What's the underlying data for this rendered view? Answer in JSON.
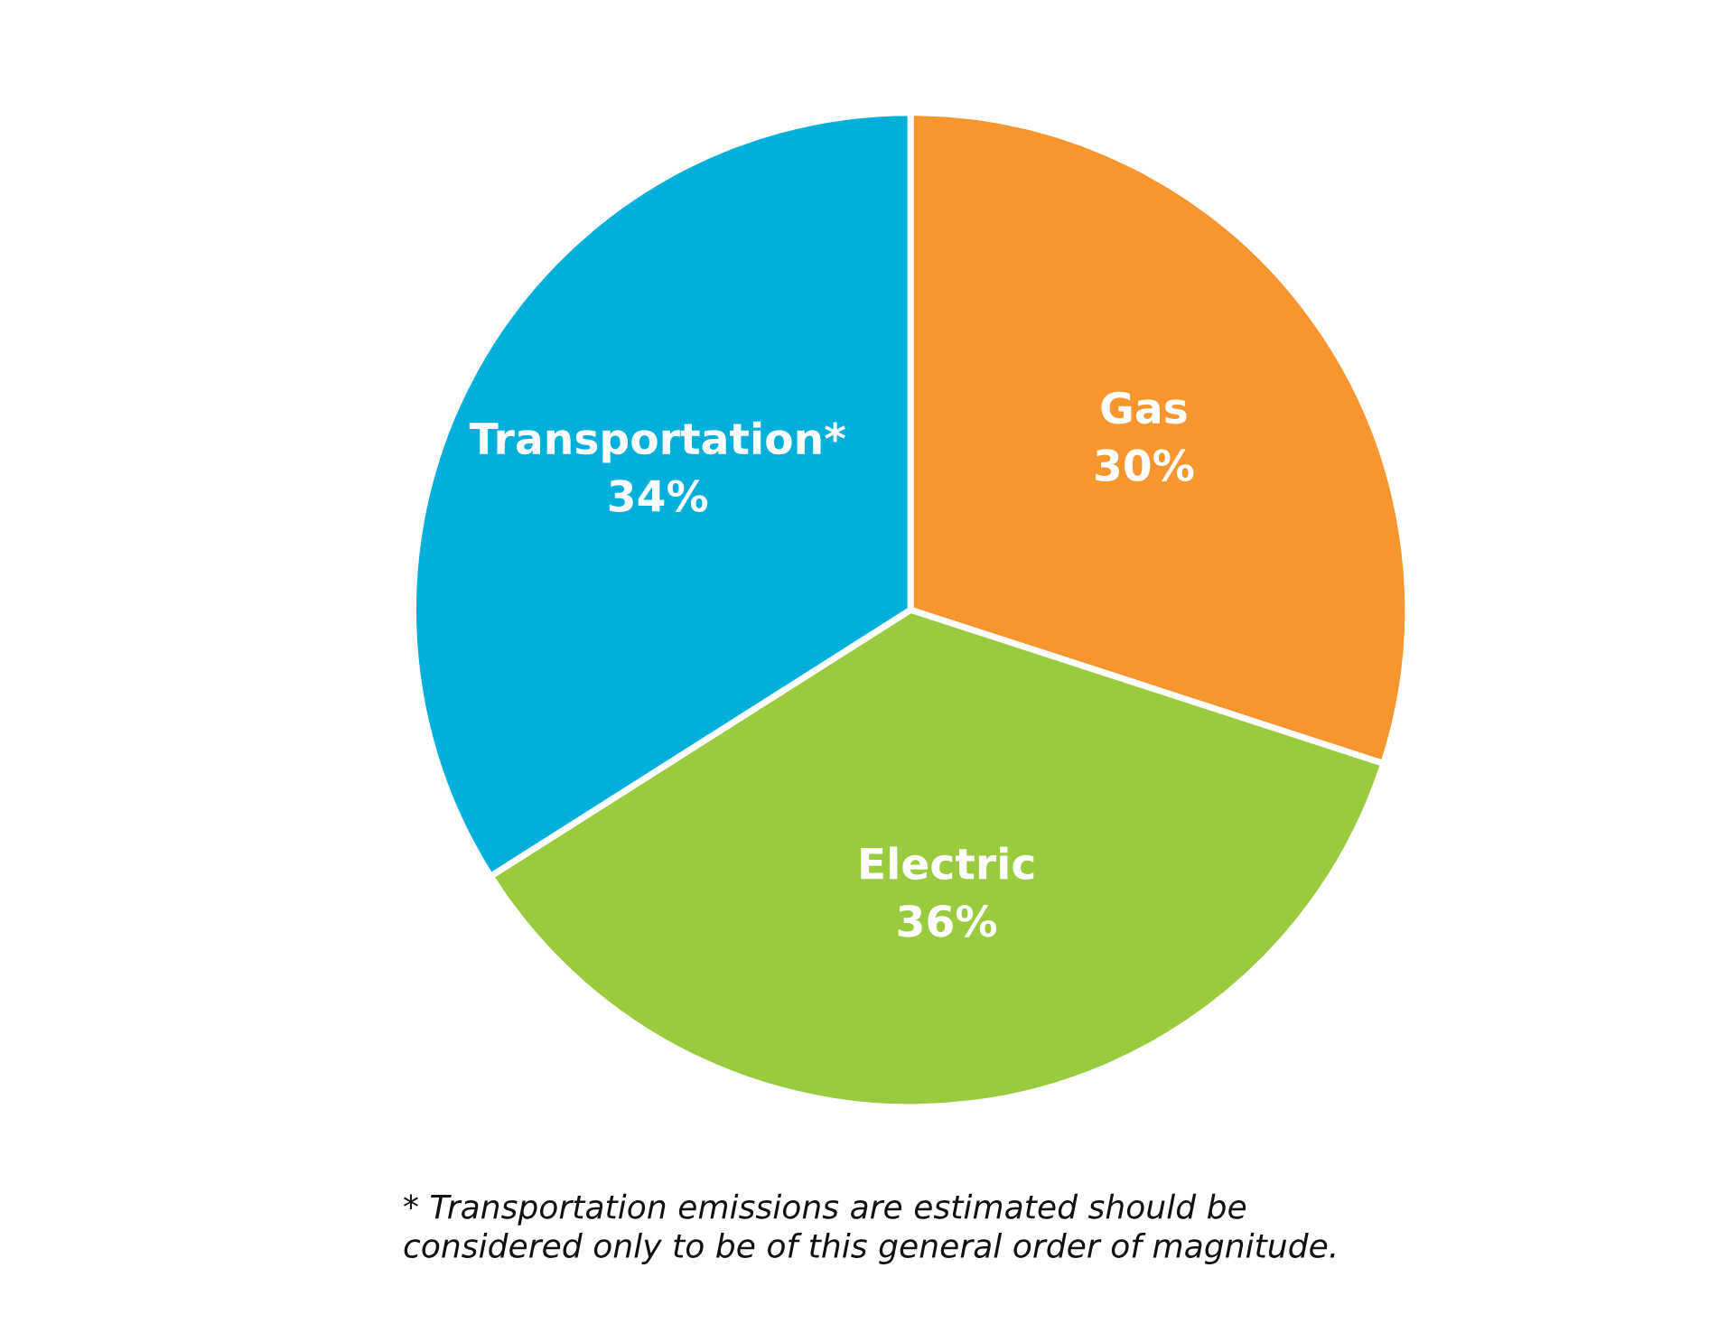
{
  "chart_data": {
    "type": "pie",
    "categories": [
      "Gas",
      "Electric",
      "Transportation*"
    ],
    "values": [
      30,
      36,
      34
    ],
    "colors": [
      "#f7962f",
      "#9acb3e",
      "#00b0da"
    ],
    "value_labels": [
      "30%",
      "36%",
      "34%"
    ],
    "annotations": [
      "* Transportation emissions are estimated should be\nconsidered only to be of this general order of magnitude."
    ]
  }
}
